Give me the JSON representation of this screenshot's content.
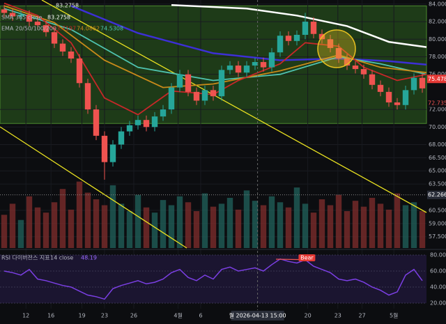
{
  "chart_data": {
    "type": "candlestick",
    "legend": {
      "symbol_value": "83.2758",
      "sma": "SMA 365 close",
      "sma_value": "83.2758",
      "ema": "EMA 20/50/100/200",
      "ema_values": [
        "73.7197",
        "74.0862",
        "74.5308"
      ]
    },
    "xlim": [
      -0.5,
      50.5
    ],
    "ylim": [
      57.24,
      84.23
    ],
    "yticks": [
      {
        "value": 84,
        "label": "84.0000"
      },
      {
        "value": 82,
        "label": "82.0000"
      },
      {
        "value": 80,
        "label": "80.0000"
      },
      {
        "value": 78,
        "label": "78.0000"
      },
      {
        "value": 76,
        "label": "76.0000"
      },
      {
        "value": 72,
        "label": "72.0000"
      },
      {
        "value": 70,
        "label": "70.0000"
      },
      {
        "value": 68,
        "label": "68.0000"
      },
      {
        "value": 66.5,
        "label": "66.5000"
      },
      {
        "value": 65,
        "label": "65.0000"
      },
      {
        "value": 63.5,
        "label": "63.5000"
      },
      {
        "value": 60.5,
        "label": "60.5000"
      },
      {
        "value": 59,
        "label": "59.0000"
      },
      {
        "value": 57.5,
        "label": "57.5000"
      }
    ],
    "xticks": [
      {
        "value": 2.6,
        "label": "12"
      },
      {
        "value": 5.6,
        "label": "16"
      },
      {
        "value": 9.3,
        "label": "19"
      },
      {
        "value": 12,
        "label": "23"
      },
      {
        "value": 15.5,
        "label": "26"
      },
      {
        "value": 20.8,
        "label": "4월"
      },
      {
        "value": 23.5,
        "label": "6"
      },
      {
        "value": 36.3,
        "label": "20"
      },
      {
        "value": 39.9,
        "label": "23"
      },
      {
        "value": 42.8,
        "label": "27"
      },
      {
        "value": 46.6,
        "label": "5월"
      }
    ],
    "crosshair": {
      "value": 30.3,
      "label": "월 2026-04-13 15:00"
    },
    "zone": [
      70.4,
      83.8
    ],
    "price_line": {
      "value": 62.266,
      "label": "62.2660"
    },
    "badges": [
      {
        "value": 75.478,
        "label": "75.4780",
        "color": "#e53935"
      },
      {
        "value": 72.735,
        "label": "72.7350",
        "color": "#0c0d10"
      }
    ],
    "up_color": "#26a69a",
    "down_color": "#ef5350",
    "open": [
      83.4,
      83.0,
      82.6,
      82.8,
      82.0,
      81.6,
      80.8,
      79.5,
      78.6,
      77.8,
      75.0,
      72.0,
      69.0,
      66.0,
      68.0,
      69.5,
      70.2,
      70.8,
      70.0,
      71.2,
      72.0,
      74.5,
      76.0,
      74.0,
      73.0,
      74.2,
      73.5,
      76.5,
      77.0,
      76.2,
      77.0,
      77.4,
      76.8,
      78.5,
      80.4,
      79.8,
      80.5,
      82.0,
      80.6,
      80.0,
      79.0,
      77.8,
      77.0,
      76.6,
      76.0,
      74.8,
      74.0,
      72.8,
      72.5,
      74.2,
      75.6
    ],
    "high": [
      83.9,
      83.5,
      83.3,
      83.3,
      82.5,
      82.1,
      81.3,
      80.0,
      79.1,
      78.3,
      75.5,
      72.5,
      69.5,
      68.5,
      70.0,
      70.7,
      71.3,
      71.3,
      71.7,
      72.5,
      75.0,
      76.5,
      76.5,
      74.5,
      74.7,
      74.7,
      77.0,
      77.5,
      77.5,
      77.5,
      77.9,
      77.9,
      79.0,
      80.9,
      80.9,
      81.0,
      83.0,
      82.5,
      81.1,
      80.5,
      79.5,
      78.3,
      77.5,
      77.1,
      76.5,
      75.3,
      74.5,
      73.3,
      74.7,
      76.1,
      76.1
    ],
    "low": [
      82.5,
      82.1,
      82.1,
      81.5,
      81.1,
      80.3,
      79.0,
      78.1,
      77.3,
      74.5,
      71.5,
      68.5,
      64.0,
      65.5,
      67.5,
      69.0,
      69.7,
      69.5,
      69.5,
      70.7,
      71.5,
      74.0,
      73.5,
      72.5,
      72.5,
      73.0,
      73.0,
      76.0,
      75.7,
      75.7,
      76.5,
      76.3,
      76.3,
      78.0,
      79.3,
      79.3,
      80.0,
      80.1,
      79.5,
      78.5,
      77.3,
      76.5,
      76.1,
      75.5,
      74.3,
      73.5,
      72.3,
      72.0,
      72.0,
      73.7,
      73.9
    ],
    "close": [
      83.0,
      82.6,
      82.8,
      82.0,
      81.6,
      80.8,
      79.5,
      78.6,
      77.8,
      75.0,
      72.0,
      69.0,
      66.0,
      68.0,
      69.5,
      70.2,
      70.8,
      70.0,
      71.2,
      72.0,
      74.5,
      76.0,
      74.0,
      73.0,
      74.2,
      73.5,
      76.5,
      77.0,
      76.2,
      77.0,
      77.4,
      76.8,
      78.5,
      80.4,
      79.8,
      80.5,
      82.0,
      80.6,
      80.0,
      79.0,
      77.8,
      77.0,
      76.6,
      76.0,
      74.8,
      74.0,
      72.8,
      72.5,
      74.2,
      75.6,
      74.4
    ],
    "volume": [
      45,
      60,
      38,
      70,
      55,
      48,
      62,
      80,
      52,
      90,
      75,
      66,
      58,
      85,
      60,
      50,
      72,
      55,
      48,
      65,
      58,
      70,
      62,
      50,
      74,
      56,
      60,
      68,
      52,
      78,
      64,
      58,
      70,
      62,
      55,
      82,
      60,
      48,
      66,
      58,
      72,
      50,
      64,
      56,
      68,
      60,
      52,
      74,
      58,
      62,
      50
    ],
    "volume_lim": [
      0,
      100
    ],
    "lines": [
      {
        "color": "#ffffff",
        "x": [
          20,
          29,
          35,
          41,
          46,
          50.5
        ],
        "values": [
          83.9,
          83.5,
          82.7,
          81.5,
          79.7,
          79.1
        ]
      },
      {
        "color": "#3d2fd6",
        "x": [
          8,
          16,
          25,
          33,
          40,
          46,
          50.5
        ],
        "values": [
          83.8,
          80.7,
          78.4,
          77.6,
          77.8,
          77.5,
          77.1
        ]
      },
      {
        "color": "#4fc3b0",
        "x": [
          0,
          8,
          16,
          25,
          33,
          40,
          45,
          50.5
        ],
        "values": [
          83.5,
          81.1,
          76.8,
          75.3,
          76.0,
          78.0,
          77.2,
          76.0
        ]
      },
      {
        "color": "#c98a1a",
        "x": [
          0,
          6,
          12,
          19,
          25,
          33,
          40,
          45,
          50.5
        ],
        "values": [
          83.8,
          81.9,
          77.6,
          74.5,
          74.9,
          76.4,
          78.2,
          76.8,
          76.2
        ]
      },
      {
        "color": "#c62828",
        "x": [
          0,
          4,
          8,
          12,
          16,
          20,
          25,
          28,
          33,
          36,
          40,
          43,
          47,
          50.5
        ],
        "values": [
          84.1,
          82.7,
          79.6,
          73.3,
          71.4,
          74.1,
          73.7,
          75.3,
          77.2,
          79.6,
          79.2,
          76.8,
          75.3,
          76.0
        ]
      }
    ],
    "rsi": {
      "title": "RSI 다이버전스 지표",
      "params": "14 close",
      "last": "48.19",
      "ylim": [
        15.7,
        85.2
      ],
      "yticks": [
        {
          "value": 80,
          "label": "80.00"
        },
        {
          "value": 60,
          "label": "60.00"
        },
        {
          "value": 40,
          "label": "40.00"
        },
        {
          "value": 20,
          "label": "20.00"
        }
      ],
      "color": "#7b3fe4",
      "values": [
        60,
        58,
        55,
        62,
        50,
        48,
        45,
        42,
        40,
        35,
        30,
        28,
        25,
        38,
        42,
        45,
        48,
        44,
        46,
        50,
        58,
        62,
        52,
        48,
        55,
        50,
        62,
        65,
        60,
        62,
        64,
        60,
        68,
        75,
        72,
        70,
        74,
        66,
        62,
        58,
        50,
        48,
        50,
        46,
        40,
        36,
        30,
        34,
        55,
        62,
        48
      ],
      "divergence_label": "Bear"
    }
  }
}
